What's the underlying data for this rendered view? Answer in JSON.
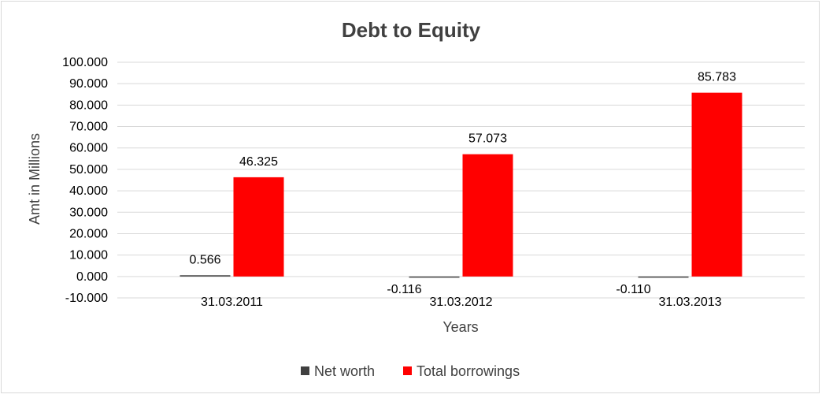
{
  "chart_data": {
    "type": "bar",
    "title": "Debt to Equity",
    "xlabel": "Years",
    "ylabel": "Amt in Millions",
    "categories": [
      "31.03.2011",
      "31.03.2012",
      "31.03.2013"
    ],
    "series": [
      {
        "name": "Net worth",
        "values": [
          0.566,
          -0.116,
          -0.11
        ],
        "labels": [
          "0.566",
          "-0.116",
          "-0.110"
        ],
        "color": "#404040"
      },
      {
        "name": "Total borrowings",
        "values": [
          46.325,
          57.073,
          85.783
        ],
        "labels": [
          "46.325",
          "57.073",
          "85.783"
        ],
        "color": "#ff0000"
      }
    ],
    "ylim": [
      -10,
      100
    ],
    "yticks": [
      100,
      90,
      80,
      70,
      60,
      50,
      40,
      30,
      20,
      10,
      0,
      -10
    ],
    "ytick_labels": [
      "100.000",
      "90.000",
      "80.000",
      "70.000",
      "60.000",
      "50.000",
      "40.000",
      "30.000",
      "20.000",
      "10.000",
      "0.000",
      "-10.000"
    ],
    "grid": true,
    "legend": "bottom",
    "gridline_color": "#d9d9d9"
  }
}
